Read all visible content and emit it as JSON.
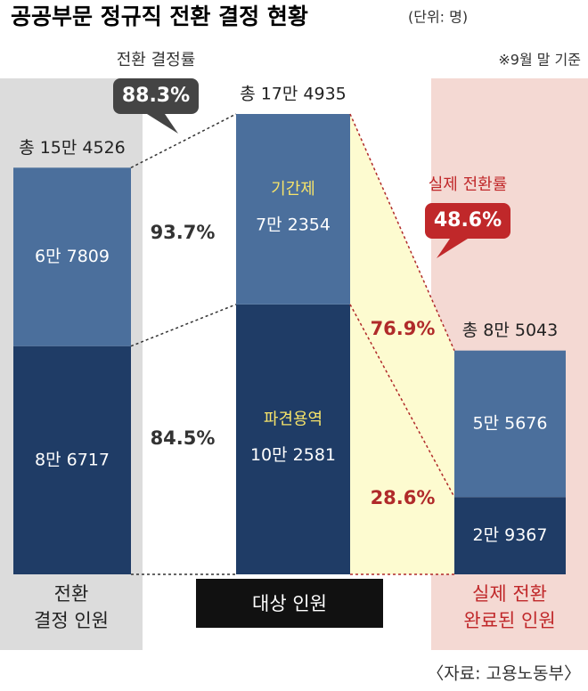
{
  "chart_data": {
    "type": "stacked-bar",
    "title": "공공부문 정규직 전환 결정 현황",
    "unit": "(단위: 명)",
    "note": "※9월 말 기준",
    "source": "〈자료: 고용노동부〉",
    "categories": [
      "전환\n결정 인원",
      "대상 인원",
      "실제 전환\n완료된 인원"
    ],
    "totals": [
      154526,
      174935,
      85043
    ],
    "total_labels": [
      "총 15만 4526",
      "총 17만 4935",
      "총 8만 5043"
    ],
    "series": [
      {
        "name": "기간제",
        "color": "#4b6f9c",
        "values": [
          67809,
          72354,
          55676
        ],
        "value_labels": [
          "6만 7809",
          "7만 2354",
          "5만 5676"
        ]
      },
      {
        "name": "파견용역",
        "color": "#1f3c66",
        "values": [
          86717,
          102581,
          29367
        ],
        "value_labels": [
          "8만 6717",
          "10만 2581",
          "2만 9367"
        ]
      }
    ],
    "ratios": [
      {
        "value": 93.7,
        "label": "93.7%"
      },
      {
        "value": 84.5,
        "label": "84.5%"
      },
      {
        "value": 76.9,
        "label": "76.9%"
      },
      {
        "value": 28.6,
        "label": "28.6%"
      }
    ],
    "rates": [
      {
        "name": "전환 결정률",
        "value": 88.3,
        "label": "88.3%"
      },
      {
        "name": "실제 전환률",
        "value": 48.6,
        "label": "48.6%"
      }
    ]
  }
}
